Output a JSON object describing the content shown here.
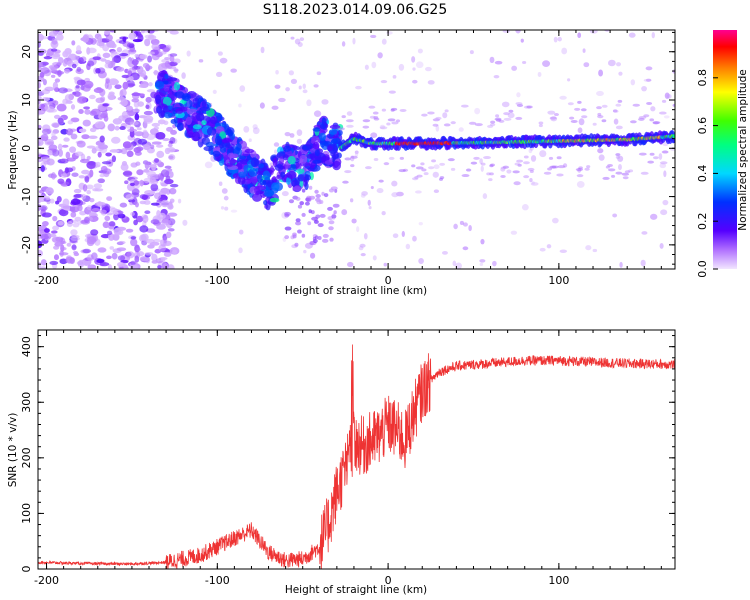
{
  "title": "S118.2023.014.09.06.G25",
  "chart_data": [
    {
      "type": "heatmap",
      "xlabel": "Height of straight line (km)",
      "ylabel": "Frequency (Hz)",
      "xlim": [
        -205,
        168
      ],
      "ylim": [
        -25,
        24.5
      ],
      "xticks": [
        -200,
        -100,
        0,
        100
      ],
      "yticks": [
        -20,
        -10,
        0,
        10,
        20
      ],
      "colorbar": {
        "label": "Normalized spectral amplitude",
        "range": [
          0,
          1
        ],
        "ticks": [
          0.0,
          0.2,
          0.4,
          0.6,
          0.8
        ]
      },
      "ridge": [
        {
          "x": -130,
          "y": 11
        },
        {
          "x": -115,
          "y": 7
        },
        {
          "x": -100,
          "y": 3
        },
        {
          "x": -90,
          "y": -2
        },
        {
          "x": -80,
          "y": -5
        },
        {
          "x": -70,
          "y": -8
        },
        {
          "x": -60,
          "y": -3
        },
        {
          "x": -50,
          "y": -5
        },
        {
          "x": -40,
          "y": 2
        },
        {
          "x": -28,
          "y": 0
        },
        {
          "x": -20,
          "y": 2
        },
        {
          "x": -10,
          "y": 1
        },
        {
          "x": 0,
          "y": 1
        },
        {
          "x": 20,
          "y": 1
        },
        {
          "x": 60,
          "y": 1.2
        },
        {
          "x": 100,
          "y": 1.5
        },
        {
          "x": 140,
          "y": 1.8
        },
        {
          "x": 168,
          "y": 2.5
        }
      ]
    },
    {
      "type": "line",
      "xlabel": "Height of straight line (km)",
      "ylabel": "SNR (10 * v/v)",
      "xlim": [
        -205,
        168
      ],
      "ylim": [
        0,
        430
      ],
      "xticks": [
        -200,
        -100,
        0,
        100
      ],
      "yticks": [
        0,
        100,
        200,
        300,
        400
      ],
      "color": "#ee3333",
      "series": [
        {
          "x": [
            -205,
            -180,
            -150,
            -130,
            -120,
            -110,
            -100,
            -90,
            -80,
            -75,
            -70,
            -60,
            -50,
            -40,
            -35,
            -30,
            -25,
            -22,
            -20,
            -15,
            -10,
            -5,
            0,
            5,
            10,
            15,
            20,
            25,
            30,
            40,
            60,
            80,
            100,
            120,
            140,
            168
          ],
          "y": [
            12,
            10,
            9,
            12,
            18,
            25,
            40,
            55,
            70,
            50,
            30,
            15,
            18,
            40,
            80,
            140,
            180,
            210,
            230,
            220,
            230,
            240,
            260,
            250,
            230,
            280,
            320,
            340,
            355,
            365,
            370,
            375,
            375,
            372,
            370,
            368
          ]
        }
      ]
    }
  ]
}
